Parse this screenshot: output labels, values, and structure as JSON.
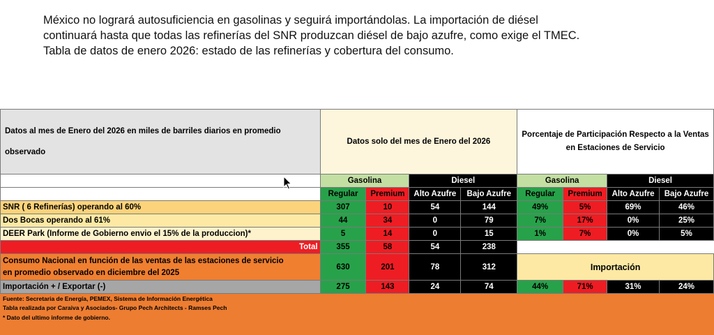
{
  "intro": {
    "line1": "México no logrará autosuficiencia en gasolinas y seguirá importándolas. La importación de diésel",
    "line2": "continuará hasta que todas las refinerías del SNR produzcan diésel de bajo azufre, como exige el TMEC.",
    "line3": "Tabla de datos de enero 2026: estado de las refinerías y cobertura del consumo."
  },
  "table": {
    "title": "Datos al mes de Enero  del 2026 en miles de barriles diarios en promedio observado",
    "header_data": "Datos solo del mes de Enero del 2026",
    "header_pct": "Porcentaje de Participación Respecto a la Ventas en Estaciones de Servicio",
    "gasolina": "Gasolina",
    "diesel": "Diesel",
    "regular": "Regular",
    "premium": "Premium",
    "alto": "Alto Azufre",
    "bajo": "Bajo Azufre",
    "rows": [
      {
        "label": "SNR ( 6 Refinerías) operando al 60%",
        "v": [
          "307",
          "10",
          "54",
          "144"
        ],
        "p": [
          "49%",
          "5%",
          "69%",
          "46%"
        ]
      },
      {
        "label": "Dos Bocas operando al 61%",
        "v": [
          "44",
          "34",
          "0",
          "79"
        ],
        "p": [
          "7%",
          "17%",
          "0%",
          "25%"
        ]
      },
      {
        "label": "DEER Park (Informe de Gobierno envio el 15% de la produccion)*",
        "v": [
          "5",
          "14",
          "0",
          "15"
        ],
        "p": [
          "1%",
          "7%",
          "0%",
          "5%"
        ]
      }
    ],
    "total_label": "Total",
    "total": [
      "355",
      "58",
      "54",
      "238"
    ],
    "consumo_label_1": "Consumo Nacional en función de las ventas de las estaciones de servicio",
    "consumo_label_2": "en promedio observado en diciembre del 2025",
    "consumo": [
      "630",
      "201",
      "78",
      "312"
    ],
    "importacion_label": "Importación",
    "imp_label": "Importación + / Exportar (-)",
    "imp": [
      "275",
      "143",
      "24",
      "74"
    ],
    "imp_pct": [
      "44%",
      "71%",
      "31%",
      "24%"
    ]
  },
  "footer": {
    "line1": "Fuente: Secretaria de Energía, PEMEX, Sistema de Información Energética",
    "line2": "Tabla realizada por Caraiva y Asociados- Grupo Pech Architects - Ramses Pech",
    "line3": "* Dato del ultimo informe de gobierno."
  }
}
